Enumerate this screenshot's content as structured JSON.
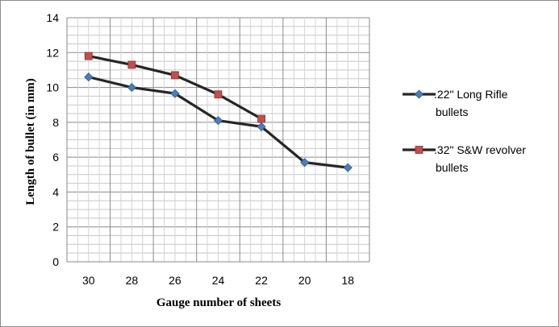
{
  "chart_data": {
    "type": "line",
    "title": "",
    "xlabel": "Gauge number of sheets",
    "ylabel": "Length of bullet (in mm)",
    "categories": [
      "30",
      "28",
      "26",
      "24",
      "22",
      "20",
      "18"
    ],
    "ylim": [
      0,
      14
    ],
    "yticks": [
      0,
      2,
      4,
      6,
      8,
      10,
      12,
      14
    ],
    "grid": true,
    "legend_position": "right",
    "series": [
      {
        "name": ".22\" Long Rifle bullets",
        "legend_lines": [
          ".22\" Long Rifle",
          "bullets"
        ],
        "marker": "diamond",
        "marker_color": "#4a7ebb",
        "values": [
          10.6,
          10.0,
          9.65,
          8.1,
          7.75,
          5.7,
          5.4
        ]
      },
      {
        "name": ".32\" S&W revolver bullets",
        "legend_lines": [
          ".32\" S&W revolver",
          "bullets"
        ],
        "marker": "square",
        "marker_color": "#c0504d",
        "values": [
          11.8,
          11.3,
          10.7,
          9.6,
          8.2,
          null,
          null
        ]
      }
    ],
    "line_color": "#262626"
  }
}
